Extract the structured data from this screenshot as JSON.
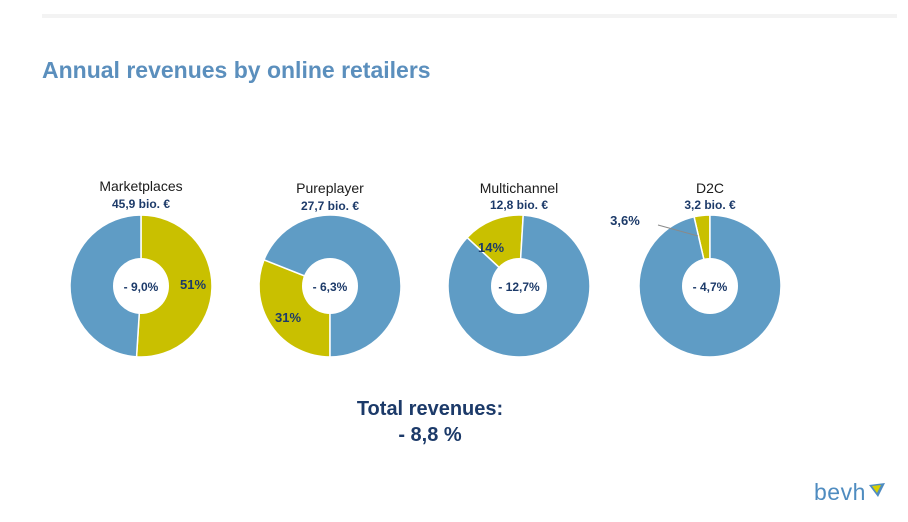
{
  "title": "Annual revenues by online retailers",
  "colors": {
    "blue": "#5f9cc5",
    "yellow": "#c9c000",
    "navy": "#1c3a69",
    "title": "#5b8fbd"
  },
  "chart_data": [
    {
      "type": "pie",
      "name": "Marketplaces",
      "value_label": "45,9 bio. €",
      "center_label": "- 9,0%",
      "slices": [
        {
          "pct": 51,
          "label": "51%",
          "color": "yellow"
        },
        {
          "pct": 49,
          "label": "",
          "color": "blue"
        }
      ]
    },
    {
      "type": "pie",
      "name": "Pureplayer",
      "value_label": "27,7 bio. €",
      "center_label": "- 6,3%",
      "slices": [
        {
          "pct": 31,
          "label": "31%",
          "color": "yellow"
        },
        {
          "pct": 69,
          "label": "",
          "color": "blue"
        }
      ]
    },
    {
      "type": "pie",
      "name": "Multichannel",
      "value_label": "12,8 bio. €",
      "center_label": "- 12,7%",
      "slices": [
        {
          "pct": 14,
          "label": "14%",
          "color": "yellow"
        },
        {
          "pct": 86,
          "label": "",
          "color": "blue"
        }
      ]
    },
    {
      "type": "pie",
      "name": "D2C",
      "value_label": "3,2 bio. €",
      "center_label": "- 4,7%",
      "slices": [
        {
          "pct": 3.6,
          "label": "3,6%",
          "color": "yellow"
        },
        {
          "pct": 96.4,
          "label": "",
          "color": "blue"
        }
      ]
    }
  ],
  "total": {
    "label": "Total revenues:",
    "value": "- 8,8 %"
  },
  "logo": {
    "text": "bevh"
  }
}
